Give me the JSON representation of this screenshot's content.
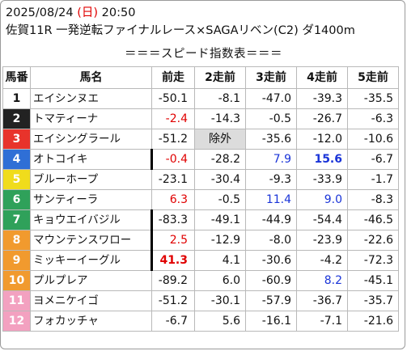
{
  "header": {
    "date": "2025/08/24",
    "day_open": "(",
    "day": "日",
    "day_close": ")",
    "time": "20:50",
    "race_title": "佐賀11R 一発逆転ファイナルレース×SAGAリベン(C2) ダ1400m"
  },
  "subtitle": "＝＝＝スピード指数表＝＝＝",
  "columns": [
    "馬番",
    "馬名",
    "前走",
    "2走前",
    "3走前",
    "4走前",
    "5走前"
  ],
  "colors": {
    "gate1": "#ffffff",
    "gate2": "#222222",
    "gate3": "#e8332b",
    "gate4": "#2f6fd6",
    "gate5": "#f0dc1c",
    "gate6": "#2fa15a",
    "gate7": "#f19a2e",
    "gate8": "#f3a1c0",
    "red_text": "#e00000",
    "blue_text": "#1a34d8",
    "excluded_bg": "#dcdcdc"
  },
  "rows": [
    {
      "no": "1",
      "name": "エイシンヌエ",
      "v": [
        "-50.1",
        "-8.1",
        "-47.0",
        "-39.3",
        "-35.5"
      ],
      "style": [
        "",
        "",
        "",
        "",
        ""
      ],
      "gate": "gate1"
    },
    {
      "no": "2",
      "name": "トマティーナ",
      "v": [
        "-2.4",
        "-14.3",
        "-0.5",
        "-26.7",
        "-6.3"
      ],
      "style": [
        "red",
        "",
        "",
        "",
        ""
      ],
      "gate": "gate2"
    },
    {
      "no": "3",
      "name": "エイシングラール",
      "v": [
        "-51.2",
        "除外",
        "-35.6",
        "-12.0",
        "-10.6"
      ],
      "style": [
        "",
        "excl",
        "",
        "",
        ""
      ],
      "gate": "gate3"
    },
    {
      "no": "4",
      "name": "オトコイキ",
      "v": [
        "-0.4",
        "-28.2",
        "7.9",
        "15.6",
        "-6.7"
      ],
      "style": [
        "red",
        "",
        "blue",
        "bluebold",
        ""
      ],
      "gate": "gate4"
    },
    {
      "no": "5",
      "name": "ブルーホープ",
      "v": [
        "-23.1",
        "-30.4",
        "-9.3",
        "-33.9",
        "-1.7"
      ],
      "style": [
        "",
        "",
        "",
        "",
        ""
      ],
      "gate": "gate5"
    },
    {
      "no": "6",
      "name": "サンティーラ",
      "v": [
        "6.3",
        "-0.5",
        "11.4",
        "9.0",
        "-8.3"
      ],
      "style": [
        "red",
        "",
        "blue",
        "blue",
        ""
      ],
      "gate": "gate6"
    },
    {
      "no": "7",
      "name": "キョウエイバジル",
      "v": [
        "-83.3",
        "-49.1",
        "-44.9",
        "-54.4",
        "-46.5"
      ],
      "style": [
        "",
        "",
        "",
        "",
        ""
      ],
      "gate": "gate6"
    },
    {
      "no": "8",
      "name": "マウンテンスワロー",
      "v": [
        "2.5",
        "-12.9",
        "-8.0",
        "-23.9",
        "-22.6"
      ],
      "style": [
        "red",
        "",
        "",
        "",
        ""
      ],
      "gate": "gate7"
    },
    {
      "no": "9",
      "name": "ミッキーイーグル",
      "v": [
        "41.3",
        "4.1",
        "-30.6",
        "-4.2",
        "-72.3"
      ],
      "style": [
        "redbold",
        "",
        "",
        "",
        ""
      ],
      "gate": "gate7"
    },
    {
      "no": "10",
      "name": "プルプレア",
      "v": [
        "-89.2",
        "6.0",
        "-60.9",
        "8.2",
        "-45.1"
      ],
      "style": [
        "",
        "",
        "",
        "blue",
        ""
      ],
      "gate": "gate7"
    },
    {
      "no": "11",
      "name": "ヨメニケイゴ",
      "v": [
        "-51.2",
        "-30.1",
        "-57.9",
        "-36.7",
        "-35.7"
      ],
      "style": [
        "",
        "",
        "",
        "",
        ""
      ],
      "gate": "gate8"
    },
    {
      "no": "12",
      "name": "フォカッチャ",
      "v": [
        "-6.7",
        "5.6",
        "-16.1",
        "-7.1",
        "-21.6"
      ],
      "style": [
        "",
        "",
        "",
        "",
        ""
      ],
      "gate": "gate8"
    }
  ]
}
